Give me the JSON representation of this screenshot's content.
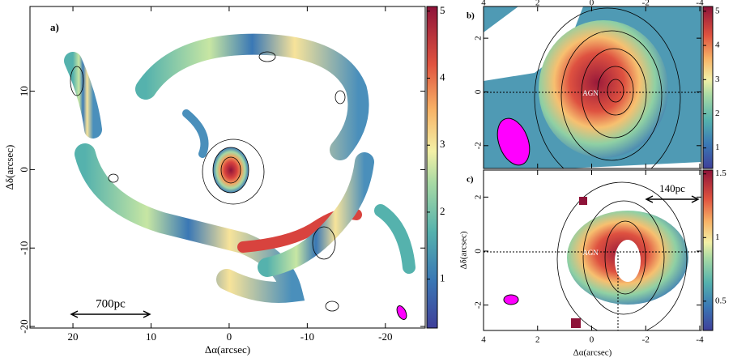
{
  "chart_data": [
    {
      "type": "map",
      "label": "a)",
      "xlabel": "Δα(arcsec)",
      "ylabel": "Δδ(arcsec)",
      "xlim": [
        25.5,
        -25.1
      ],
      "ylim": [
        -20.2,
        20.8
      ],
      "xticks": [
        20,
        10,
        0,
        -10,
        -20
      ],
      "yticks": [
        -20,
        -10,
        0,
        10
      ],
      "xaxis_position": "bottom",
      "clim": [
        0.27,
        5.07
      ],
      "cticks": [
        1,
        2,
        3,
        4,
        5
      ],
      "scalebar": "700pc"
    },
    {
      "type": "map",
      "label": "b)",
      "xlim": [
        4,
        -4.06
      ],
      "ylim": [
        -2.85,
        3.18
      ],
      "xticks": [
        4,
        2,
        0,
        -2,
        -4
      ],
      "yticks": [
        -2,
        0,
        2
      ],
      "xaxis_position": "top",
      "clim": [
        0.4,
        5.14
      ],
      "cticks": [
        1,
        2,
        3,
        4,
        5
      ],
      "annotation": "AGN"
    },
    {
      "type": "map",
      "label": "c)",
      "xlabel": "Δα(arcsec)",
      "ylabel": "Δδ(arcsec)",
      "xlim": [
        4,
        -4.06
      ],
      "ylim": [
        -2.94,
        3.0
      ],
      "xticks": [
        4,
        2,
        0,
        -2,
        -4
      ],
      "yticks": [
        -2,
        0,
        2
      ],
      "xaxis_position": "bottom",
      "clim": [
        0.27,
        1.53
      ],
      "cticks": [
        0.5,
        1,
        1.5
      ],
      "scalebar": "140pc",
      "annotation": "AGN"
    }
  ]
}
